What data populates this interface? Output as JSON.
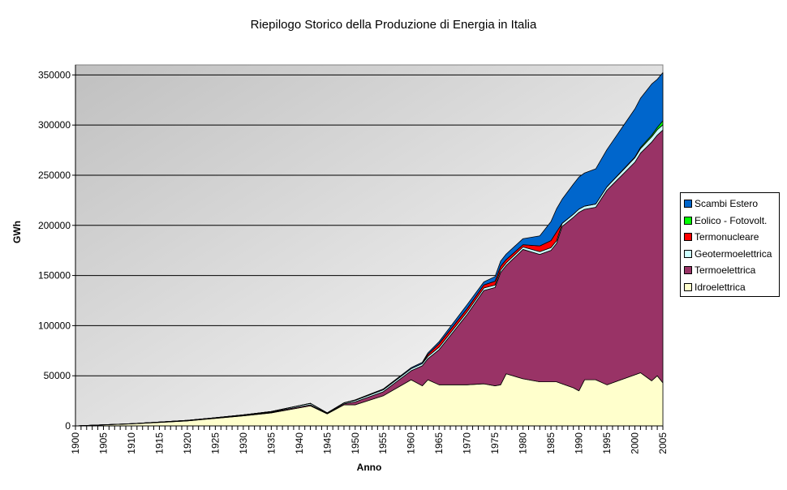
{
  "chart_data": {
    "type": "area",
    "stacked": true,
    "title": "Riepilogo Storico della Produzione di Energia in Italia",
    "xlabel": "Anno",
    "ylabel": "GWh",
    "xlim": [
      1900,
      2005
    ],
    "ylim": [
      0,
      360000
    ],
    "y_ticks": [
      0,
      50000,
      100000,
      150000,
      200000,
      250000,
      300000,
      350000
    ],
    "x_ticks": [
      1900,
      1905,
      1910,
      1915,
      1920,
      1925,
      1930,
      1935,
      1940,
      1945,
      1950,
      1955,
      1960,
      1965,
      1970,
      1975,
      1980,
      1985,
      1990,
      1995,
      2000,
      2005
    ],
    "grid": "horizontal",
    "legend_position": "right",
    "x": [
      1900,
      1905,
      1910,
      1915,
      1920,
      1925,
      1930,
      1935,
      1940,
      1942,
      1945,
      1948,
      1950,
      1955,
      1960,
      1962,
      1963,
      1965,
      1970,
      1973,
      1975,
      1976,
      1977,
      1980,
      1983,
      1985,
      1986,
      1987,
      1989,
      1990,
      1991,
      1993,
      1995,
      2000,
      2001,
      2003,
      2004,
      2005
    ],
    "series": [
      {
        "name": "Idroelettrica",
        "color": "#FFFFCC",
        "values": [
          0,
          1000,
          2000,
          3500,
          5000,
          7500,
          10000,
          13000,
          18000,
          20000,
          12000,
          21000,
          21000,
          30000,
          46000,
          40000,
          46000,
          41000,
          41000,
          42000,
          40000,
          41000,
          52000,
          47000,
          44000,
          44000,
          44000,
          42000,
          38000,
          35000,
          46000,
          46000,
          41000,
          51000,
          53000,
          45000,
          50000,
          43000
        ]
      },
      {
        "name": "Termoelettrica",
        "color": "#993366",
        "values": [
          0,
          100,
          200,
          300,
          400,
          500,
          600,
          700,
          1000,
          1000,
          500,
          1000,
          3000,
          4000,
          9000,
          20000,
          21000,
          35000,
          70000,
          93000,
          98000,
          112000,
          108000,
          129000,
          127000,
          131000,
          138000,
          157000,
          170000,
          178000,
          170000,
          172000,
          194000,
          212000,
          219000,
          238000,
          240000,
          252000
        ]
      },
      {
        "name": "Geotermoelettrica",
        "color": "#CCFFFF",
        "values": [
          0,
          0,
          0,
          0,
          100,
          200,
          400,
          600,
          1200,
          1500,
          500,
          1000,
          1500,
          2000,
          2100,
          2200,
          2300,
          2500,
          2700,
          2500,
          2500,
          2500,
          2500,
          2500,
          2700,
          2800,
          2800,
          2900,
          3100,
          3200,
          3200,
          3300,
          3400,
          4500,
          4500,
          5300,
          5400,
          5300
        ]
      },
      {
        "name": "Termonucleare",
        "color": "#FF0000",
        "values": [
          0,
          0,
          0,
          0,
          0,
          0,
          0,
          0,
          0,
          0,
          0,
          0,
          0,
          0,
          0,
          0,
          2000,
          3500,
          3200,
          3100,
          3800,
          3800,
          3400,
          2200,
          5800,
          7000,
          8700,
          200,
          0,
          0,
          0,
          0,
          0,
          0,
          0,
          0,
          0,
          0
        ]
      },
      {
        "name": "Eolico - Fotovolt.",
        "color": "#00FF00",
        "values": [
          0,
          0,
          0,
          0,
          0,
          0,
          0,
          0,
          0,
          0,
          0,
          0,
          0,
          0,
          0,
          0,
          0,
          0,
          0,
          0,
          0,
          0,
          0,
          0,
          0,
          0,
          0,
          0,
          0,
          0,
          0,
          0,
          100,
          600,
          1200,
          1600,
          2200,
          4000
        ]
      },
      {
        "name": "Scambi Estero",
        "color": "#0066CC",
        "values": [
          0,
          0,
          0,
          0,
          0,
          0,
          0,
          0,
          0,
          0,
          0,
          0,
          500,
          800,
          1000,
          1200,
          1500,
          2000,
          4000,
          3000,
          4600,
          5000,
          5500,
          6000,
          10000,
          19000,
          23000,
          24000,
          30000,
          32000,
          33000,
          35000,
          37000,
          48000,
          49000,
          51000,
          48000,
          48000
        ]
      }
    ]
  }
}
